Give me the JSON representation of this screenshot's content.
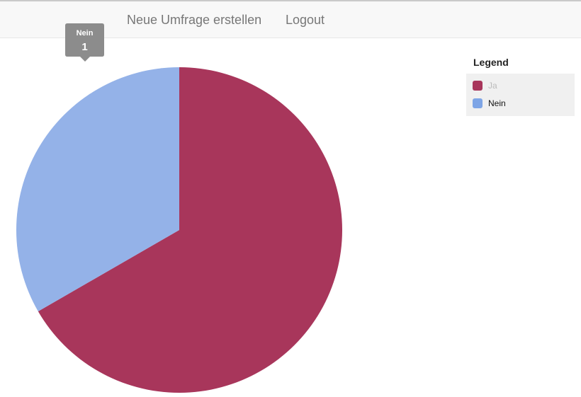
{
  "nav": {
    "new_survey": "Neue Umfrage erstellen",
    "logout": "Logout"
  },
  "chart_data": {
    "type": "pie",
    "categories": [
      "Ja",
      "Nein"
    ],
    "values": [
      2,
      1
    ],
    "colors": [
      "#a8365b",
      "#94b2e8"
    ],
    "legend_colors": [
      "#a8365b",
      "#7ea5e6"
    ],
    "legend": {
      "title": "Legend",
      "placement": "top-right",
      "items": [
        {
          "label": "Ja",
          "state": "dimmed"
        },
        {
          "label": "Nein",
          "state": "active"
        }
      ]
    },
    "tooltip": {
      "label": "Nein",
      "value": "1"
    }
  }
}
